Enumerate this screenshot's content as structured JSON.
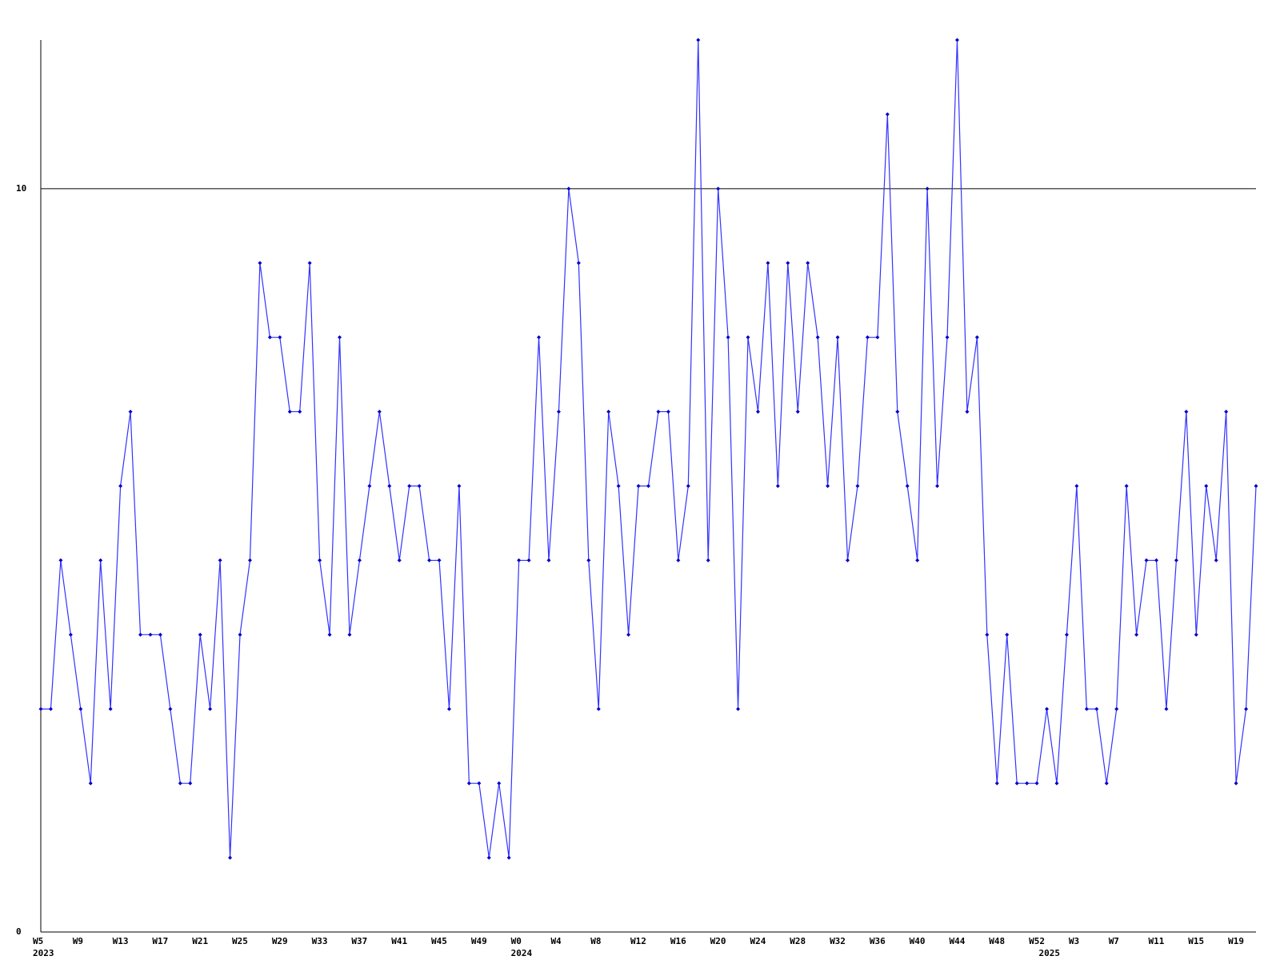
{
  "chart_data": {
    "type": "line",
    "categories": [
      "W5",
      null,
      null,
      null,
      "W9",
      null,
      null,
      null,
      "W13",
      null,
      null,
      null,
      "W17",
      null,
      null,
      null,
      "W21",
      null,
      null,
      null,
      "W25",
      null,
      null,
      null,
      "W29",
      null,
      null,
      null,
      "W33",
      null,
      null,
      null,
      "W37",
      null,
      null,
      null,
      "W41",
      null,
      null,
      null,
      "W45",
      null,
      null,
      null,
      "W49",
      null,
      null,
      null,
      "W0",
      null,
      null,
      null,
      "W4",
      null,
      null,
      null,
      "W8",
      null,
      null,
      null,
      "W12",
      null,
      null,
      null,
      "W16",
      null,
      null,
      null,
      "W20",
      null,
      null,
      null,
      "W24",
      null,
      null,
      null,
      "W28",
      null,
      null,
      null,
      "W32",
      null,
      null,
      null,
      "W36",
      null,
      null,
      null,
      "W40",
      null,
      null,
      null,
      "W44",
      null,
      null,
      null,
      "W48",
      null,
      null,
      null,
      "W52",
      null,
      null,
      null,
      "W3",
      null,
      null,
      null,
      "W7",
      null,
      null,
      null,
      "W11",
      null,
      null,
      null,
      "W15",
      null,
      null,
      null,
      "W19",
      null,
      null
    ],
    "years": [
      "2023",
      null,
      null,
      null,
      null,
      null,
      null,
      null,
      null,
      null,
      null,
      null,
      null,
      null,
      null,
      null,
      null,
      null,
      null,
      null,
      null,
      null,
      null,
      null,
      null,
      null,
      null,
      null,
      null,
      null,
      null,
      null,
      null,
      null,
      null,
      null,
      null,
      null,
      null,
      null,
      null,
      null,
      null,
      null,
      null,
      null,
      null,
      null,
      "2024",
      null,
      null,
      null,
      null,
      null,
      null,
      null,
      null,
      null,
      null,
      null,
      null,
      null,
      null,
      null,
      null,
      null,
      null,
      null,
      null,
      null,
      null,
      null,
      null,
      null,
      null,
      null,
      null,
      null,
      null,
      null,
      null,
      null,
      null,
      null,
      null,
      null,
      null,
      null,
      null,
      null,
      null,
      null,
      null,
      null,
      null,
      null,
      null,
      null,
      null,
      null,
      null,
      "2025",
      null,
      null,
      null,
      null,
      null,
      null,
      null,
      null,
      null,
      null,
      null,
      null,
      null,
      null,
      null,
      null,
      null,
      null,
      null,
      null,
      null
    ],
    "values": [
      3,
      3,
      5,
      4,
      3,
      2,
      5,
      3,
      6,
      7,
      4,
      4,
      4,
      3,
      2,
      2,
      4,
      3,
      5,
      1,
      4,
      5,
      9,
      8,
      8,
      7,
      7,
      9,
      5,
      4,
      8,
      4,
      5,
      6,
      7,
      6,
      5,
      6,
      6,
      5,
      5,
      3,
      6,
      2,
      2,
      1,
      2,
      1,
      5,
      5,
      8,
      5,
      7,
      10,
      9,
      5,
      3,
      7,
      6,
      4,
      6,
      6,
      7,
      7,
      5,
      6,
      12,
      5,
      10,
      8,
      3,
      8,
      7,
      9,
      6,
      9,
      7,
      9,
      8,
      6,
      8,
      5,
      6,
      8,
      8,
      11,
      7,
      6,
      5,
      10,
      6,
      8,
      12,
      7,
      8,
      4,
      2,
      4,
      2,
      2,
      2,
      3,
      2,
      4,
      6,
      3,
      3,
      2,
      3,
      6,
      4,
      5,
      5,
      3,
      5,
      7,
      4,
      6,
      5,
      7,
      2,
      3,
      6
    ],
    "color": "#3333ff",
    "marker_color": "#0000cc",
    "ylim": [
      0,
      12
    ],
    "yticks": [
      0,
      10
    ],
    "grid": true
  }
}
